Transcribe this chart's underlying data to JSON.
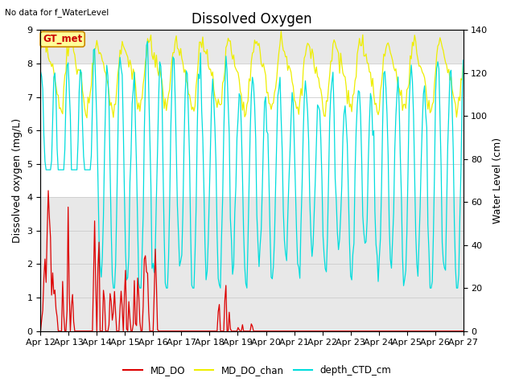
{
  "title": "Dissolved Oxygen",
  "top_left_text": "No data for f_WaterLevel",
  "annotation_text": "GT_met",
  "xlabel_ticks": [
    "Apr 12",
    "Apr 13",
    "Apr 14",
    "Apr 15",
    "Apr 16",
    "Apr 17",
    "Apr 18",
    "Apr 19",
    "Apr 20",
    "Apr 21",
    "Apr 22",
    "Apr 23",
    "Apr 24",
    "Apr 25",
    "Apr 26",
    "Apr 27"
  ],
  "ylabel_left": "Dissolved oxygen (mg/L)",
  "ylabel_right": "Water Level (cm)",
  "ylim_left": [
    0.0,
    9.0
  ],
  "ylim_right": [
    0,
    140
  ],
  "yticks_left": [
    0.0,
    1.0,
    2.0,
    3.0,
    4.0,
    5.0,
    6.0,
    7.0,
    8.0,
    9.0
  ],
  "yticks_right": [
    0,
    20,
    40,
    60,
    80,
    100,
    120,
    140
  ],
  "bg_band_lo": 4.0,
  "bg_band_hi": 8.0,
  "bg_gray": "#e8e8e8",
  "bg_white": "#ffffff",
  "color_MD_DO": "#dd0000",
  "color_MD_DO_chan": "#eeee00",
  "color_depth_CTD": "#00dddd",
  "title_fontsize": 12,
  "axis_label_fontsize": 9,
  "tick_fontsize": 8,
  "annotation_facecolor": "#ffff99",
  "annotation_edgecolor": "#cc8800",
  "annotation_textcolor": "#cc0000"
}
